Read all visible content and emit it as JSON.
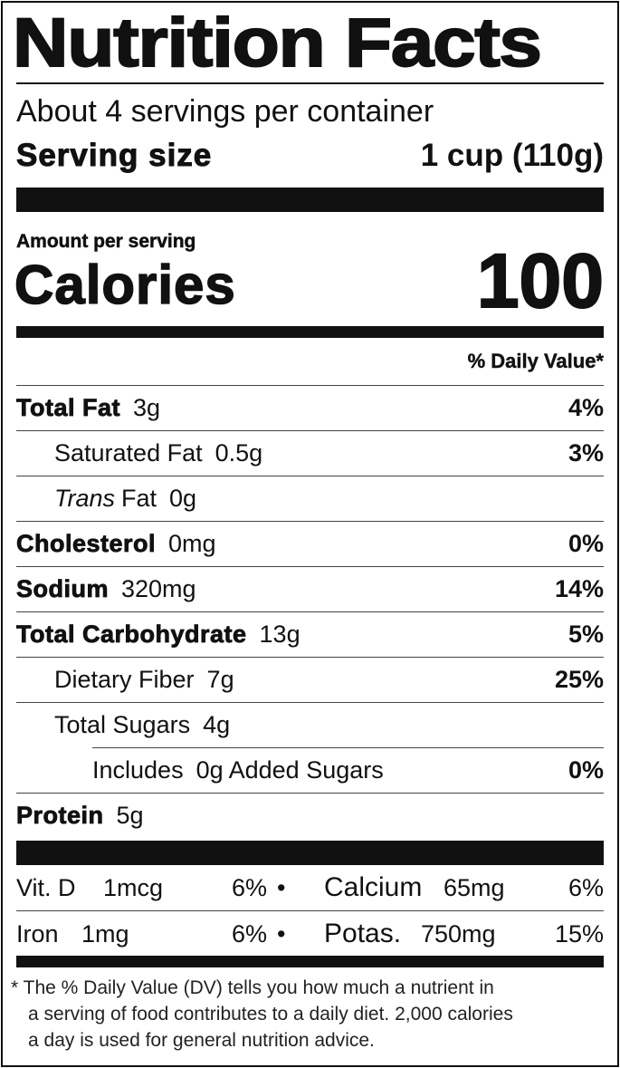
{
  "title": "Nutrition Facts",
  "servings_per_container": "About 4 servings per container",
  "serving_size_label": "Serving size",
  "serving_size_value": "1 cup (110g)",
  "amount_per_serving": "Amount per serving",
  "calories_label": "Calories",
  "calories_value": "100",
  "daily_value_header": "% Daily Value*",
  "nutrients": [
    {
      "name": "Total Fat",
      "amount": "3g",
      "dv": "4%",
      "bold": true,
      "indent": 0
    },
    {
      "name": "Saturated Fat",
      "amount": "0.5g",
      "dv": "3%",
      "bold": false,
      "indent": 1
    },
    {
      "name_italic": "Trans",
      "name": "Fat",
      "amount": "0g",
      "dv": "",
      "bold": false,
      "indent": 1
    },
    {
      "name": "Cholesterol",
      "amount": "0mg",
      "dv": "0%",
      "bold": true,
      "indent": 0
    },
    {
      "name": "Sodium",
      "amount": "320mg",
      "dv": "14%",
      "bold": true,
      "indent": 0
    },
    {
      "name": "Total Carbohydrate",
      "amount": "13g",
      "dv": "5%",
      "bold": true,
      "indent": 0
    },
    {
      "name": "Dietary Fiber",
      "amount": "7g",
      "dv": "25%",
      "bold": false,
      "indent": 1
    },
    {
      "name": "Total Sugars",
      "amount": "4g",
      "dv": "",
      "bold": false,
      "indent": 1
    },
    {
      "name": "Includes",
      "amount": "0g Added Sugars",
      "dv": "0%",
      "bold": false,
      "indent": 2
    },
    {
      "name": "Protein",
      "amount": "5g",
      "dv": "",
      "bold": true,
      "indent": 0
    }
  ],
  "vitamins": [
    {
      "left_name": "Vit. D",
      "left_amount": "1mcg",
      "left_dv": "6%",
      "bullet": "•",
      "right_name": "Calcium",
      "right_amount": "65mg",
      "right_dv": "6%"
    },
    {
      "left_name": "Iron",
      "left_amount": "1mg",
      "left_dv": "6%",
      "bullet": "•",
      "right_name": "Potas.",
      "right_amount": "750mg",
      "right_dv": "15%"
    }
  ],
  "footnote": [
    "* The % Daily Value (DV) tells you how much a nutrient in",
    "a serving of food contributes to a daily diet. 2,000 calories",
    "a day is used for general nutrition advice."
  ]
}
